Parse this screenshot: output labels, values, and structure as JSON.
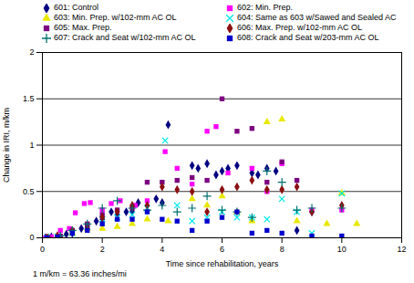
{
  "chart_data": {
    "type": "scatter",
    "xlabel": "Time since rehabilitation, years",
    "ylabel": "Change in IRI, m/km",
    "footnote": "1 m/km = 63.36 inches/mi",
    "xlim": [
      0,
      12
    ],
    "ylim": [
      0.0,
      2.0
    ],
    "xticks": [
      0,
      2,
      4,
      6,
      8,
      10,
      12
    ],
    "yticks": [
      0.0,
      0.5,
      1.0,
      1.5,
      2.0
    ],
    "hlines": [
      0.5,
      1.0,
      1.5
    ],
    "grid": false,
    "legend": "top",
    "series": [
      {
        "name": "601: Control",
        "color": "#000080",
        "marker": "diamond",
        "x": [
          0.1,
          0.3,
          0.5,
          0.8,
          1.0,
          1.3,
          1.5,
          1.8,
          2.0,
          2.3,
          2.5,
          2.8,
          3.0,
          3.2,
          3.8,
          4.0,
          4.2,
          5.0,
          5.2,
          5.5,
          5.8,
          6.0,
          6.2,
          6.5,
          7.0,
          7.2,
          7.5,
          7.8,
          8.5,
          9.0
        ],
        "values": [
          0.0,
          0.01,
          0.02,
          0.04,
          0.05,
          0.1,
          0.12,
          0.18,
          0.2,
          0.28,
          0.25,
          0.28,
          0.28,
          0.38,
          0.42,
          0.38,
          1.22,
          0.78,
          0.75,
          0.8,
          0.68,
          0.72,
          0.75,
          0.78,
          0.7,
          0.68,
          0.75,
          0.72,
          0.08,
          0.28
        ]
      },
      {
        "name": "602: Min. Prep.",
        "color": "#ff00ff",
        "marker": "square",
        "x": [
          0.1,
          0.3,
          0.6,
          0.9,
          1.1,
          1.4,
          1.6,
          2.0,
          2.3,
          2.6,
          3.1,
          3.5,
          4.1,
          4.5,
          5.0,
          5.5,
          5.8,
          6.2,
          7.0,
          7.5,
          8.0,
          9.0,
          10.0
        ],
        "values": [
          0.0,
          0.01,
          0.08,
          0.1,
          0.27,
          0.37,
          0.38,
          0.3,
          0.37,
          0.4,
          0.35,
          0.4,
          0.93,
          0.75,
          0.58,
          1.15,
          1.2,
          0.7,
          0.75,
          0.5,
          0.8,
          0.3,
          0.3
        ]
      },
      {
        "name": "603: Min. Prep. w/102-mm AC OL",
        "color": "#e8e800",
        "marker": "triangle",
        "x": [
          0.2,
          0.5,
          1.0,
          1.5,
          2.0,
          2.5,
          3.0,
          3.5,
          4.2,
          5.0,
          5.5,
          6.0,
          6.5,
          7.0,
          7.5,
          8.0,
          8.5,
          9.5,
          10.0,
          10.5
        ],
        "values": [
          0.0,
          0.02,
          0.05,
          0.1,
          0.1,
          0.12,
          0.15,
          0.2,
          0.18,
          0.42,
          0.35,
          0.45,
          0.28,
          0.18,
          1.25,
          1.28,
          0.18,
          0.15,
          0.48,
          0.15
        ]
      },
      {
        "name": "604: Same as 603 w/Sawed and Sealed AC",
        "color": "#00e8e8",
        "marker": "x",
        "x": [
          0.15,
          0.5,
          1.0,
          1.5,
          2.0,
          2.5,
          3.0,
          3.5,
          4.1,
          4.5,
          5.0,
          5.5,
          6.0,
          6.5,
          7.0,
          7.5,
          8.0,
          8.5,
          9.0,
          10.0
        ],
        "values": [
          0.0,
          0.01,
          0.05,
          0.12,
          0.2,
          0.22,
          0.25,
          0.32,
          1.05,
          0.35,
          0.18,
          0.22,
          0.28,
          0.22,
          0.22,
          0.2,
          0.42,
          0.28,
          0.05,
          0.48
        ]
      },
      {
        "name": "605: Max. Prep.",
        "color": "#7b0080",
        "marker": "square",
        "x": [
          0.2,
          0.6,
          1.0,
          1.5,
          2.0,
          2.5,
          3.0,
          3.5,
          4.0,
          4.5,
          5.0,
          5.5,
          6.0,
          6.5,
          7.0,
          7.5,
          8.0,
          8.5
        ],
        "values": [
          0.0,
          0.02,
          0.08,
          0.15,
          0.25,
          0.3,
          0.32,
          0.6,
          0.6,
          0.62,
          0.65,
          0.62,
          1.5,
          1.15,
          1.18,
          0.6,
          0.82,
          0.62
        ]
      },
      {
        "name": "606: Max. Prep. w/102-mm AC OL",
        "color": "#8b1010",
        "marker": "diamond",
        "x": [
          0.15,
          0.5,
          1.0,
          1.5,
          2.0,
          2.5,
          3.0,
          3.5,
          4.0,
          4.5,
          5.0,
          5.5,
          6.0,
          6.5,
          7.0,
          7.5,
          8.0,
          8.5,
          9.0,
          10.0
        ],
        "values": [
          0.0,
          0.02,
          0.08,
          0.1,
          0.22,
          0.28,
          0.35,
          0.35,
          0.55,
          0.52,
          0.5,
          0.28,
          0.52,
          0.55,
          0.62,
          0.52,
          0.52,
          0.55,
          0.28,
          0.35
        ]
      },
      {
        "name": "607: Crack and Seat w/102-mm AC OL",
        "color": "#007070",
        "marker": "plus",
        "x": [
          0.2,
          0.6,
          1.0,
          1.5,
          2.0,
          2.5,
          3.0,
          3.5,
          4.0,
          4.5,
          5.0,
          5.5,
          6.0,
          6.5,
          7.0,
          7.5,
          8.0,
          8.5,
          9.0,
          10.0
        ],
        "values": [
          0.0,
          0.02,
          0.08,
          0.15,
          0.32,
          0.4,
          0.32,
          0.3,
          0.35,
          0.28,
          0.32,
          0.45,
          0.3,
          0.28,
          0.22,
          0.72,
          0.6,
          0.3,
          0.32,
          0.32
        ]
      },
      {
        "name": "608: Crack and Seat w/203-mm AC OL",
        "color": "#0000cc",
        "marker": "square",
        "x": [
          0.15,
          0.5,
          1.0,
          1.5,
          2.0,
          2.5,
          3.0,
          3.5,
          4.0,
          4.5,
          5.0,
          5.5,
          6.0,
          6.5,
          7.0,
          7.5,
          8.0,
          9.0,
          10.0
        ],
        "values": [
          0.0,
          0.01,
          0.05,
          0.08,
          0.15,
          0.2,
          0.2,
          0.28,
          0.2,
          0.18,
          0.08,
          0.18,
          0.22,
          0.28,
          0.05,
          0.08,
          0.05,
          0.02,
          0.02
        ]
      }
    ]
  }
}
